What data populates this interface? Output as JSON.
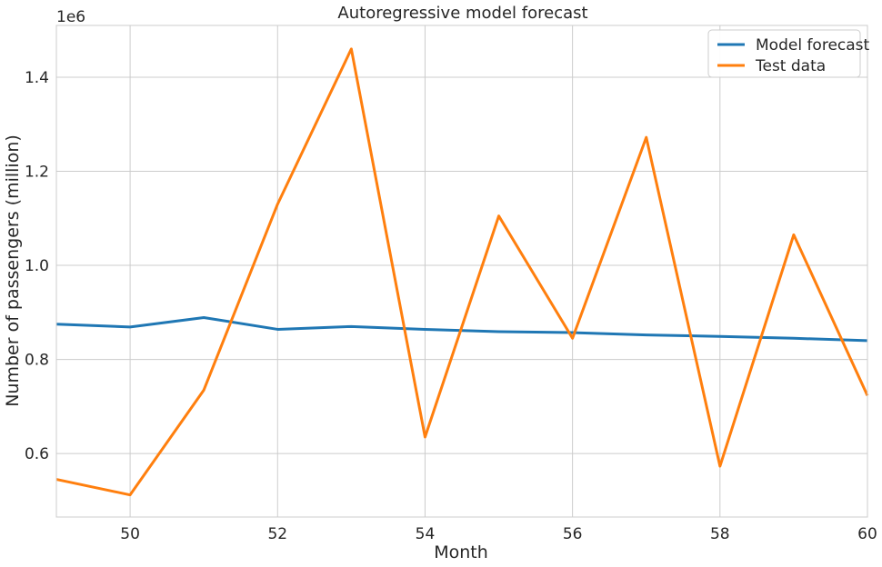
{
  "chart_data": {
    "type": "line",
    "title": "Autoregressive model forecast",
    "xlabel": "Month",
    "ylabel": "Number of passengers (million)",
    "y_offset_label": "1e6",
    "xlim": [
      49,
      60
    ],
    "ylim": [
      465000,
      1510000
    ],
    "x_ticks": [
      50,
      52,
      54,
      56,
      58,
      60
    ],
    "y_ticks": [
      600000,
      800000,
      1000000,
      1200000,
      1400000
    ],
    "x_tick_labels": [
      "50",
      "52",
      "54",
      "56",
      "58",
      "60"
    ],
    "y_tick_labels": [
      "0.6",
      "0.8",
      "1.0",
      "1.2",
      "1.4"
    ],
    "grid": true,
    "legend_position": "top-right",
    "x": [
      49,
      50,
      51,
      52,
      53,
      54,
      55,
      56,
      57,
      58,
      59,
      60
    ],
    "series": [
      {
        "name": "Model forecast",
        "color": "#1f77b4",
        "values": [
          875000,
          869000,
          889000,
          864000,
          870000,
          864000,
          859000,
          857000,
          852000,
          849000,
          845000,
          840000
        ]
      },
      {
        "name": "Test data",
        "color": "#ff7f0e",
        "values": [
          545000,
          512000,
          735000,
          1130000,
          1460000,
          635000,
          1105000,
          845000,
          1272000,
          573000,
          1065000,
          723000
        ]
      }
    ]
  }
}
